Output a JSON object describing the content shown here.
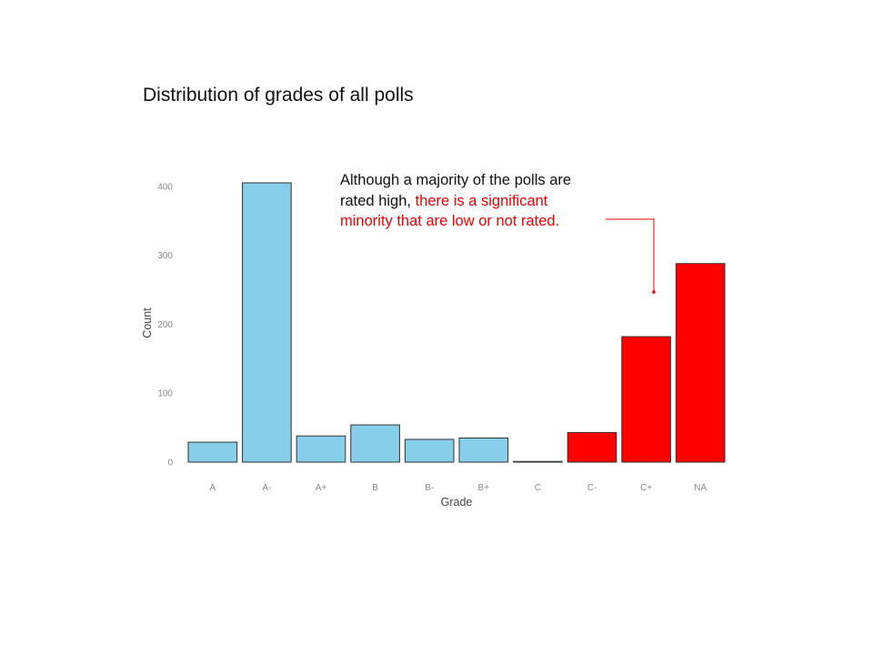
{
  "title": "Distribution of grades of all polls",
  "annotation": {
    "text_plain": "Although a majority of the polls are rated high, ",
    "text_highlight": "there is a significant minority that are low or not rated."
  },
  "colors": {
    "default": "#87ceeb",
    "highlight": "#ff0000",
    "annotation_highlight": "#ee0000"
  },
  "chart_data": {
    "type": "bar",
    "title": "Distribution of grades of all polls",
    "xlabel": "Grade",
    "ylabel": "Count",
    "ylim": [
      0,
      405
    ],
    "yticks": [
      0,
      100,
      200,
      300,
      400
    ],
    "grid": false,
    "categories": [
      "A",
      "A-",
      "A+",
      "B",
      "B-",
      "B+",
      "C",
      "C-",
      "C+",
      "NA"
    ],
    "values": [
      29,
      405,
      38,
      54,
      33,
      35,
      1,
      43,
      182,
      288
    ],
    "highlighted": [
      "C",
      "C-",
      "C+",
      "NA"
    ]
  }
}
